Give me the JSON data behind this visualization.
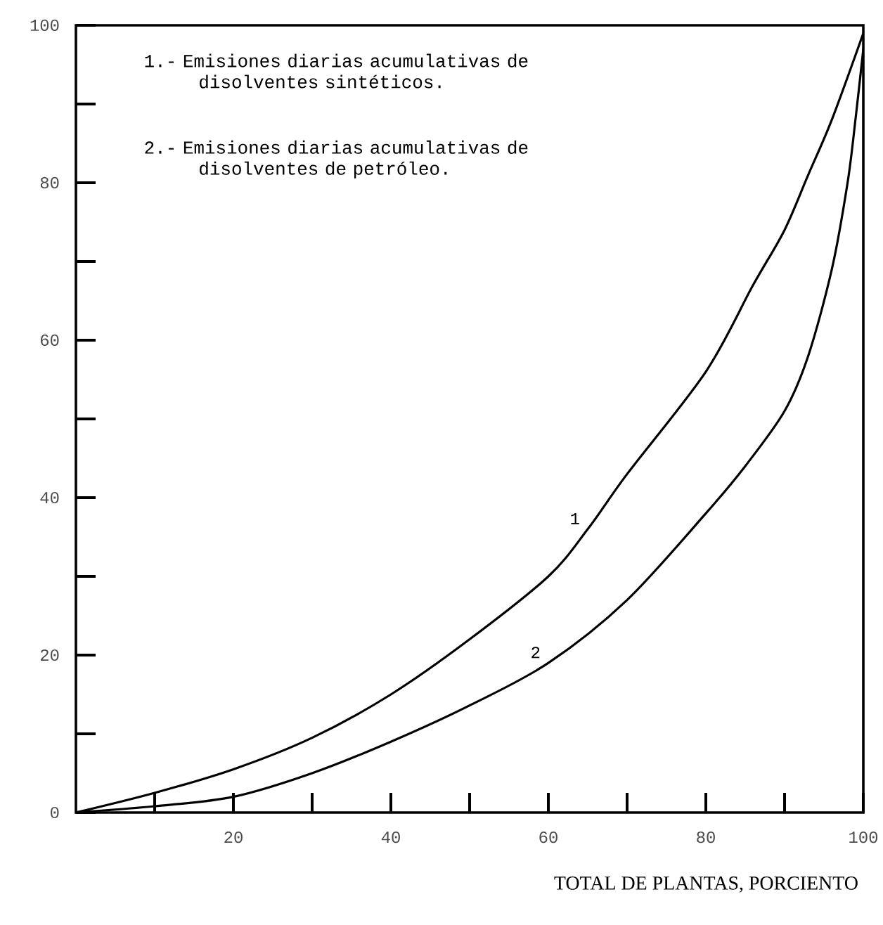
{
  "chart_data": {
    "type": "line",
    "xlabel": "TOTAL DE PLANTAS, PORCIENTO",
    "annotations": [
      "1.- Emisiones diarias acumulativas de disolventes sintéticos.",
      "2.- Emisiones diarias acumulativas de disolventes de petróleo."
    ],
    "series": [
      {
        "name": "1",
        "color": "#000000",
        "x": [
          0,
          10,
          20,
          30,
          40,
          50,
          60,
          65,
          70,
          80,
          86,
          90,
          93,
          96,
          100
        ],
        "values": [
          0,
          2.5,
          5.5,
          9.5,
          15,
          22,
          30,
          36,
          43,
          56,
          67,
          74,
          81,
          88,
          99
        ]
      },
      {
        "name": "2",
        "color": "#000000",
        "x": [
          0,
          10,
          20,
          30,
          40,
          50,
          60,
          70,
          80,
          85,
          90,
          93,
          96,
          98,
          99,
          100
        ],
        "values": [
          0,
          0.8,
          2,
          5,
          9,
          13.6,
          19,
          27,
          38,
          44,
          51,
          58,
          69,
          80,
          88,
          97
        ]
      }
    ],
    "xlim": [
      0,
      100
    ],
    "ylim": [
      0,
      100
    ],
    "xticks": [
      {
        "value": 10,
        "label": null
      },
      20,
      {
        "value": 30,
        "label": null
      },
      40,
      {
        "value": 50,
        "label": null
      },
      60,
      {
        "value": 70,
        "label": null
      },
      80,
      {
        "value": 90,
        "label": null
      },
      100
    ],
    "yticks": [
      0,
      {
        "value": 10,
        "label": null
      },
      20,
      {
        "value": 30,
        "label": null
      },
      40,
      {
        "value": 50,
        "label": null
      },
      60,
      {
        "value": 70,
        "label": null
      },
      80,
      {
        "value": 90,
        "label": null
      },
      100
    ],
    "grid": false,
    "legend": false,
    "marker": "none",
    "line_style": "solid"
  }
}
